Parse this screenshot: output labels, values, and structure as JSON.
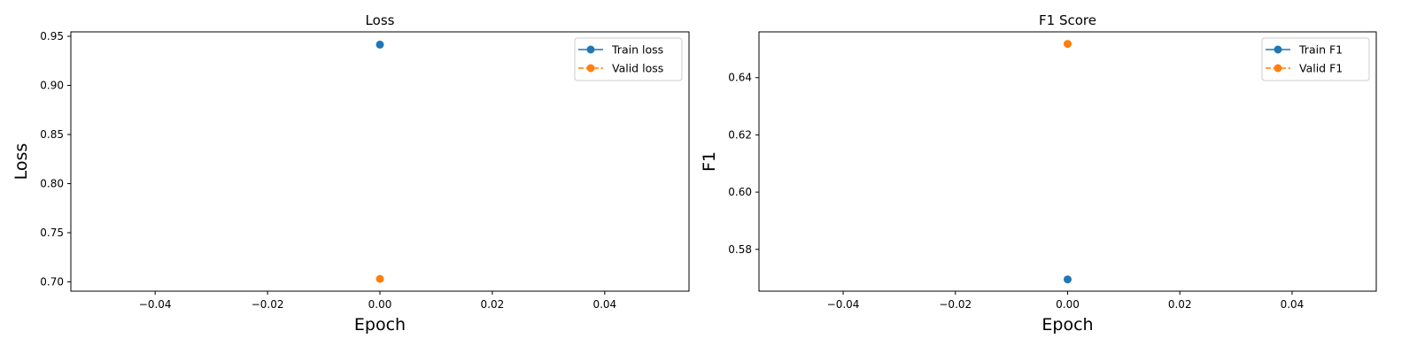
{
  "chart_data": [
    {
      "type": "line",
      "title": "Loss",
      "xlabel": "Epoch",
      "ylabel": "Loss",
      "xlim": [
        -0.055,
        0.055
      ],
      "ylim": [
        0.6905,
        0.9545
      ],
      "xticks": [
        -0.04,
        -0.02,
        0.0,
        0.02,
        0.04
      ],
      "xtick_labels": [
        "−0.04",
        "−0.02",
        "0.00",
        "0.02",
        "0.04"
      ],
      "yticks": [
        0.7,
        0.75,
        0.8,
        0.85,
        0.9,
        0.95
      ],
      "ytick_labels": [
        "0.70",
        "0.75",
        "0.80",
        "0.85",
        "0.90",
        "0.95"
      ],
      "grid": false,
      "legend_position": "top-right",
      "series": [
        {
          "name": "Train loss",
          "x": [
            0
          ],
          "y": [
            0.9415
          ],
          "color": "#1f77b4",
          "linestyle": "solid",
          "marker": "circle"
        },
        {
          "name": "Valid loss",
          "x": [
            0
          ],
          "y": [
            0.703
          ],
          "color": "#ff7f0e",
          "linestyle": "dashed",
          "marker": "circle"
        }
      ]
    },
    {
      "type": "line",
      "title": "F1 Score",
      "xlabel": "Epoch",
      "ylabel": "F1",
      "xlim": [
        -0.055,
        0.055
      ],
      "ylim": [
        0.5654,
        0.656
      ],
      "xticks": [
        -0.04,
        -0.02,
        0.0,
        0.02,
        0.04
      ],
      "xtick_labels": [
        "−0.04",
        "−0.02",
        "0.00",
        "0.02",
        "0.04"
      ],
      "yticks": [
        0.58,
        0.6,
        0.62,
        0.64
      ],
      "ytick_labels": [
        "0.58",
        "0.60",
        "0.62",
        "0.64"
      ],
      "grid": false,
      "legend_position": "top-right",
      "series": [
        {
          "name": "Train F1",
          "x": [
            0
          ],
          "y": [
            0.5695
          ],
          "color": "#1f77b4",
          "linestyle": "solid",
          "marker": "circle"
        },
        {
          "name": "Valid F1",
          "x": [
            0
          ],
          "y": [
            0.6518
          ],
          "color": "#ff7f0e",
          "linestyle": "dashed",
          "marker": "circle"
        }
      ]
    }
  ]
}
